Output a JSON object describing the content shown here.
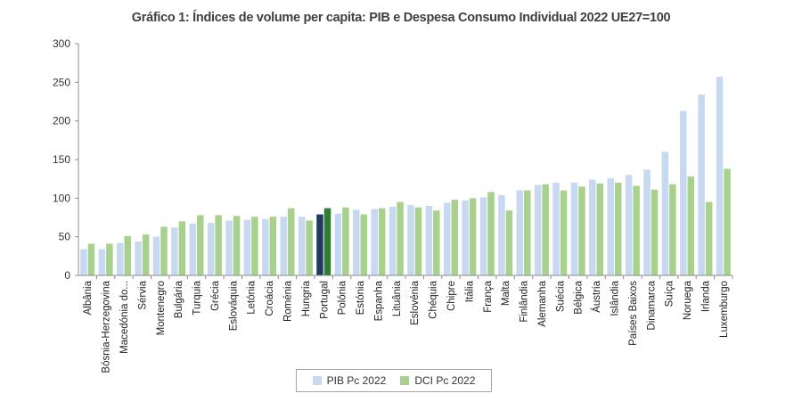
{
  "colors": {
    "pib": "#c6d9f1",
    "dci": "#a9d18e",
    "pib_highlight": "#1f3864",
    "dci_highlight": "#2f7d32"
  },
  "chart_data": {
    "type": "bar",
    "title": "Gráfico 1: Índices de volume per capita: PIB e Despesa Consumo Individual 2022 UE27=100",
    "xlabel": "",
    "ylabel": "",
    "ylim": [
      0,
      300
    ],
    "yticks": [
      0,
      50,
      100,
      150,
      200,
      250,
      300
    ],
    "grid": false,
    "legend_position": "bottom",
    "highlight_category": "Portugal",
    "categories": [
      "Albânia",
      "Bósnia-Herzegovina",
      "Macedónia do...",
      "Sérvia",
      "Montenegro",
      "Bulgária",
      "Turquia",
      "Grécia",
      "Eslováquia",
      "Letónia",
      "Croácia",
      "Roménia",
      "Hungria",
      "Portugal",
      "Polónia",
      "Estónia",
      "Espanha",
      "Lituânia",
      "Eslovénia",
      "Chéquia",
      "Chipre",
      "Itália",
      "França",
      "Malta",
      "Finlândia",
      "Alemanha",
      "Suécia",
      "Bélgica",
      "Áustria",
      "Islândia",
      "Países Baixos",
      "Dinamarca",
      "Suíça",
      "Noruega",
      "Irlanda",
      "Luxemburgo"
    ],
    "series": [
      {
        "name": "PIB Pc 2022",
        "values": [
          34,
          34,
          42,
          44,
          50,
          62,
          67,
          68,
          71,
          72,
          73,
          76,
          76,
          79,
          80,
          85,
          86,
          89,
          91,
          90,
          94,
          97,
          101,
          104,
          110,
          117,
          120,
          120,
          124,
          126,
          130,
          137,
          160,
          213,
          234,
          257
        ]
      },
      {
        "name": "DCI Pc 2022",
        "values": [
          41,
          41,
          51,
          53,
          63,
          70,
          78,
          78,
          77,
          76,
          76,
          87,
          71,
          87,
          88,
          79,
          87,
          95,
          88,
          84,
          98,
          100,
          108,
          84,
          110,
          118,
          110,
          115,
          119,
          120,
          116,
          111,
          118,
          128,
          95,
          138
        ]
      }
    ]
  }
}
